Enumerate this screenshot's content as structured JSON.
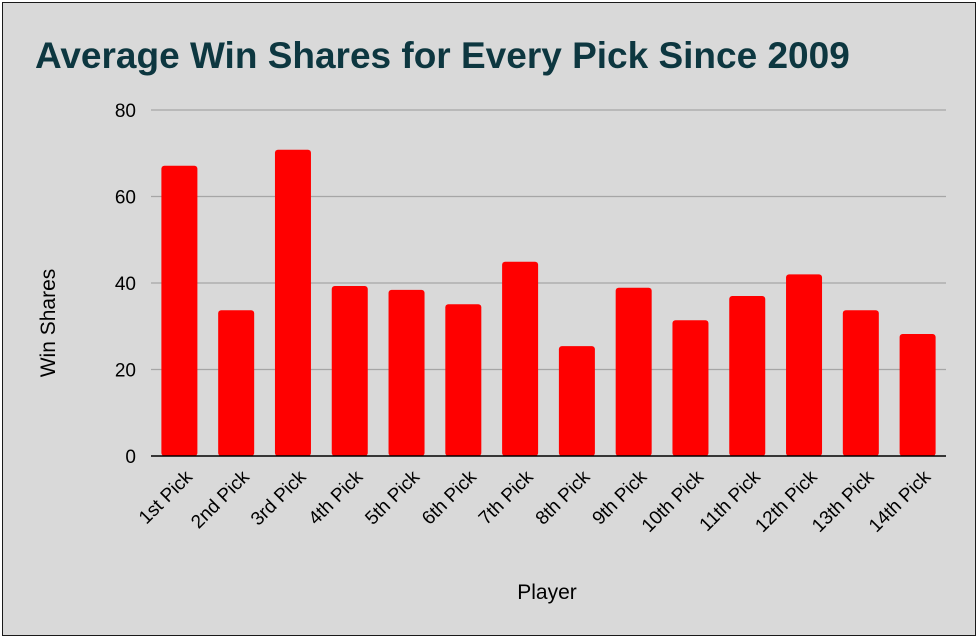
{
  "chart_data": {
    "type": "bar",
    "title": "Average Win Shares for Every Pick Since 2009",
    "xlabel": "Player",
    "ylabel": "Win Shares",
    "categories": [
      "1st Pick",
      "2nd Pick",
      "3rd Pick",
      "4th Pick",
      "5th Pick",
      "6th Pick",
      "7th Pick",
      "8th Pick",
      "9th Pick",
      "10th Pick",
      "11th Pick",
      "12th Pick",
      "13th Pick",
      "14th Pick"
    ],
    "values": [
      67.1,
      33.7,
      70.8,
      39.3,
      38.4,
      35.1,
      44.9,
      25.4,
      38.9,
      31.4,
      37.0,
      42.0,
      33.7,
      28.2
    ],
    "ylim": [
      0,
      80
    ],
    "yticks": [
      "0",
      "20",
      "40",
      "60",
      "80"
    ],
    "grid": true,
    "legend": "none",
    "colors": {
      "bar": "#ff0000",
      "title": "#0d3740",
      "background": "#d9d9d9",
      "gridline": "#a6a6a6",
      "axis": "#000000"
    }
  }
}
